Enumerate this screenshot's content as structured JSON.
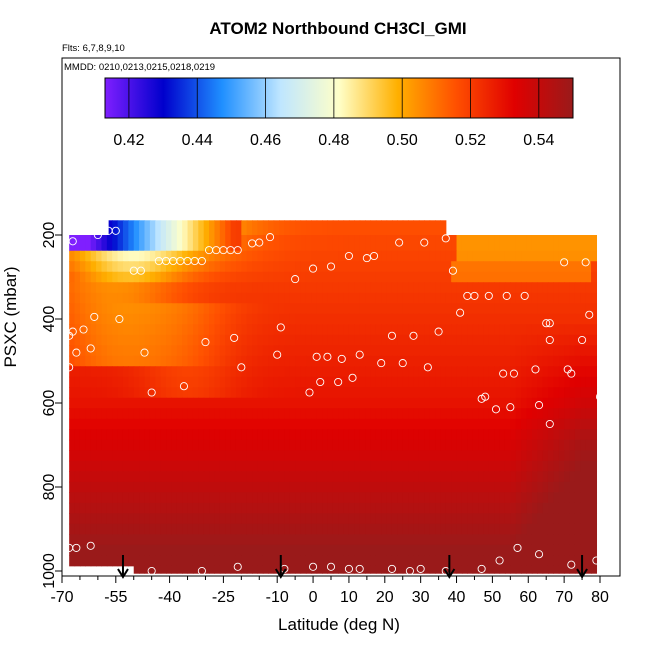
{
  "chart_data": {
    "type": "heatmap",
    "title": "ATOM2 Northbound CH3Cl_GMI",
    "flights_label": "Flts: 6,7,8,9,10",
    "mmdd_label": "MMDD: 0210,0213,0215,0218,0219",
    "xlabel": "Latitude (deg N)",
    "ylabel": "PSXC (mbar)",
    "xlim": [
      -70,
      82
    ],
    "ylim": [
      1000,
      0
    ],
    "x_ticks": [
      "-70",
      "-55",
      "-40",
      "-25",
      "-10",
      "0",
      "10",
      "20",
      "30",
      "40",
      "50",
      "60",
      "70",
      "80"
    ],
    "x_tick_values": [
      -70,
      -55,
      -40,
      -25,
      -10,
      0,
      10,
      20,
      30,
      40,
      50,
      60,
      70,
      80
    ],
    "y_ticks": [
      "200",
      "400",
      "600",
      "800",
      "1000"
    ],
    "y_tick_values": [
      200,
      400,
      600,
      800,
      1000
    ],
    "colorbar": {
      "min": 0.413,
      "max": 0.55,
      "tick_labels": [
        "0.42",
        "0.44",
        "0.46",
        "0.48",
        "0.50",
        "0.52",
        "0.54"
      ],
      "tick_values": [
        0.42,
        0.44,
        0.46,
        0.48,
        0.5,
        0.52,
        0.54
      ],
      "colors": [
        "#7f1fff",
        "#0000cc",
        "#1f8fff",
        "#bfe6ff",
        "#ffffc8",
        "#ffb000",
        "#ff5000",
        "#e00000",
        "#9a1a1a"
      ]
    },
    "pressure_levels": [
      175,
      225,
      250,
      275,
      300,
      325,
      350,
      375,
      400,
      425,
      450,
      475,
      500,
      525,
      550,
      575,
      600,
      625,
      650,
      675,
      700,
      725,
      750,
      775,
      800,
      825,
      850,
      875,
      900,
      925,
      950,
      975,
      1000
    ],
    "profile_latitudes": [
      -68,
      -60,
      -52,
      -44,
      -36,
      -28,
      -20,
      -12,
      -4,
      4,
      12,
      20,
      28,
      36,
      44,
      52,
      60,
      68,
      76
    ],
    "lat_coverage_by_level": [
      [
        -57,
        -57,
        37,
        37
      ],
      [
        -68,
        -68,
        80,
        80
      ]
    ],
    "observations": [
      {
        "lat": -67,
        "p": 215
      },
      {
        "lat": -60,
        "p": 200
      },
      {
        "lat": -57,
        "p": 190
      },
      {
        "lat": -55,
        "p": 190
      },
      {
        "lat": -50,
        "p": 285
      },
      {
        "lat": -48,
        "p": 285
      },
      {
        "lat": -43,
        "p": 262
      },
      {
        "lat": -41,
        "p": 262
      },
      {
        "lat": -39,
        "p": 262
      },
      {
        "lat": -37,
        "p": 262
      },
      {
        "lat": -35,
        "p": 262
      },
      {
        "lat": -33,
        "p": 262
      },
      {
        "lat": -31,
        "p": 262
      },
      {
        "lat": -29,
        "p": 236
      },
      {
        "lat": -27,
        "p": 236
      },
      {
        "lat": -25,
        "p": 236
      },
      {
        "lat": -23,
        "p": 236
      },
      {
        "lat": -21,
        "p": 236
      },
      {
        "lat": -17,
        "p": 220
      },
      {
        "lat": -15,
        "p": 218
      },
      {
        "lat": -12,
        "p": 205
      },
      {
        "lat": -5,
        "p": 305
      },
      {
        "lat": 0,
        "p": 280
      },
      {
        "lat": 5,
        "p": 275
      },
      {
        "lat": 10,
        "p": 250
      },
      {
        "lat": 15,
        "p": 255
      },
      {
        "lat": 17,
        "p": 250
      },
      {
        "lat": 24,
        "p": 218
      },
      {
        "lat": 31,
        "p": 218
      },
      {
        "lat": 37,
        "p": 208
      },
      {
        "lat": 39,
        "p": 285
      },
      {
        "lat": 43,
        "p": 345
      },
      {
        "lat": 45,
        "p": 345
      },
      {
        "lat": 49,
        "p": 345
      },
      {
        "lat": 54,
        "p": 345
      },
      {
        "lat": 59,
        "p": 345
      },
      {
        "lat": 70,
        "p": 265
      },
      {
        "lat": 76,
        "p": 265
      },
      {
        "lat": -68,
        "p": 440
      },
      {
        "lat": -67,
        "p": 430
      },
      {
        "lat": -66,
        "p": 480
      },
      {
        "lat": -64,
        "p": 425
      },
      {
        "lat": -62,
        "p": 470
      },
      {
        "lat": -61,
        "p": 395
      },
      {
        "lat": -54,
        "p": 400
      },
      {
        "lat": -47,
        "p": 480
      },
      {
        "lat": -30,
        "p": 455
      },
      {
        "lat": -22,
        "p": 445
      },
      {
        "lat": -20,
        "p": 515
      },
      {
        "lat": -9,
        "p": 420
      },
      {
        "lat": -10,
        "p": 485
      },
      {
        "lat": -1,
        "p": 575
      },
      {
        "lat": 1,
        "p": 490
      },
      {
        "lat": 2,
        "p": 550
      },
      {
        "lat": 4,
        "p": 490
      },
      {
        "lat": 7,
        "p": 550
      },
      {
        "lat": 8,
        "p": 495
      },
      {
        "lat": 11,
        "p": 540
      },
      {
        "lat": 13,
        "p": 485
      },
      {
        "lat": 19,
        "p": 505
      },
      {
        "lat": 22,
        "p": 440
      },
      {
        "lat": 25,
        "p": 505
      },
      {
        "lat": 28,
        "p": 440
      },
      {
        "lat": 32,
        "p": 515
      },
      {
        "lat": 35,
        "p": 430
      },
      {
        "lat": 41,
        "p": 385
      },
      {
        "lat": 47,
        "p": 590
      },
      {
        "lat": 48,
        "p": 585
      },
      {
        "lat": 51,
        "p": 615
      },
      {
        "lat": 53,
        "p": 530
      },
      {
        "lat": 55,
        "p": 610
      },
      {
        "lat": 56,
        "p": 530
      },
      {
        "lat": 62,
        "p": 520
      },
      {
        "lat": 63,
        "p": 605
      },
      {
        "lat": 65,
        "p": 410
      },
      {
        "lat": 66,
        "p": 410
      },
      {
        "lat": 66,
        "p": 450
      },
      {
        "lat": 66,
        "p": 650
      },
      {
        "lat": 71,
        "p": 520
      },
      {
        "lat": 72,
        "p": 530
      },
      {
        "lat": 75,
        "p": 450
      },
      {
        "lat": 77,
        "p": 390
      },
      {
        "lat": 80,
        "p": 585
      },
      {
        "lat": -36,
        "p": 560
      },
      {
        "lat": -45,
        "p": 575
      },
      {
        "lat": -68,
        "p": 515
      },
      {
        "lat": -68,
        "p": 945
      },
      {
        "lat": -66,
        "p": 945
      },
      {
        "lat": -62,
        "p": 940
      },
      {
        "lat": -45,
        "p": 1000
      },
      {
        "lat": -31,
        "p": 1000
      },
      {
        "lat": -21,
        "p": 990
      },
      {
        "lat": -8,
        "p": 995
      },
      {
        "lat": 0,
        "p": 990
      },
      {
        "lat": 5,
        "p": 990
      },
      {
        "lat": 10,
        "p": 995
      },
      {
        "lat": 13,
        "p": 995
      },
      {
        "lat": 22,
        "p": 995
      },
      {
        "lat": 27,
        "p": 1000
      },
      {
        "lat": 30,
        "p": 995
      },
      {
        "lat": 37,
        "p": 1000
      },
      {
        "lat": 47,
        "p": 995
      },
      {
        "lat": 52,
        "p": 975
      },
      {
        "lat": 57,
        "p": 945
      },
      {
        "lat": 63,
        "p": 960
      },
      {
        "lat": 72,
        "p": 985
      },
      {
        "lat": 79,
        "p": 975
      }
    ],
    "flight_markers_lat": [
      -53,
      -9,
      38,
      75
    ],
    "field_description_values": {
      "upper_cold_patch_lat": [
        -57,
        -23
      ],
      "min_value": 0.413,
      "max_value": 0.55
    }
  }
}
